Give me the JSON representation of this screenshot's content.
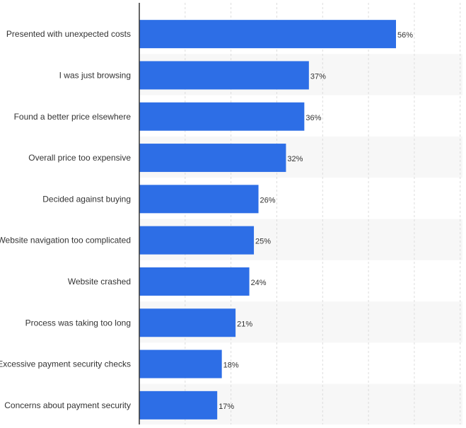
{
  "chart_data": {
    "type": "bar",
    "orientation": "horizontal",
    "categories": [
      "Presented with unexpected costs",
      "I was just browsing",
      "Found a better price elsewhere",
      "Overall price too expensive",
      "Decided against buying",
      "Website navigation too complicated",
      "Website crashed",
      "Process was taking too long",
      "Excessive payment security checks",
      "Concerns about payment security"
    ],
    "values": [
      56,
      37,
      36,
      32,
      26,
      25,
      24,
      21,
      18,
      17
    ],
    "value_labels": [
      "56%",
      "37%",
      "36%",
      "32%",
      "26%",
      "25%",
      "24%",
      "21%",
      "18%",
      "17%"
    ],
    "unit": "%",
    "title": "",
    "xlabel": "",
    "ylabel": "",
    "xlim": [
      0,
      70
    ],
    "grid": true,
    "bar_color": "#2d6ee6",
    "band_color": "#f7f7f7"
  }
}
